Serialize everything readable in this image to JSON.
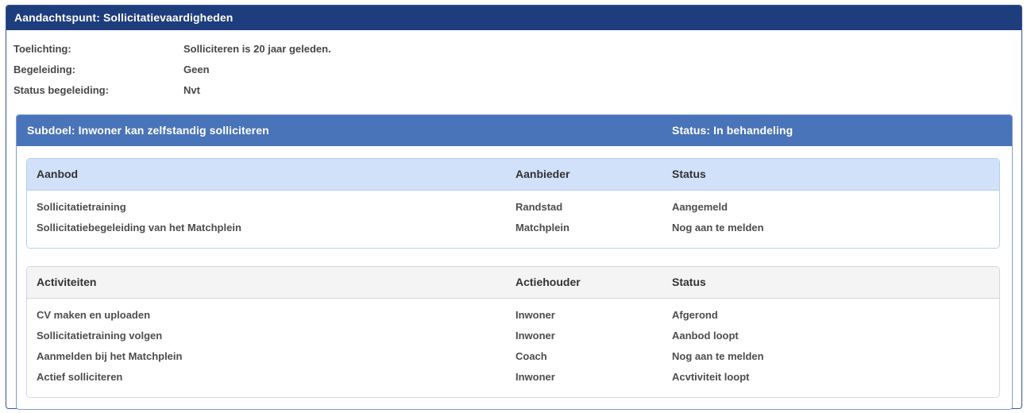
{
  "header": {
    "title": "Aandachtspunt: Sollicitatievaardigheden"
  },
  "details": {
    "fields": [
      {
        "label": "Toelichting:",
        "value": "Solliciteren is 20 jaar geleden."
      },
      {
        "label": "Begeleiding:",
        "value": "Geen"
      },
      {
        "label": "Status begeleiding:",
        "value": "Nvt"
      }
    ]
  },
  "subgoal": {
    "title": "Subdoel: Inwoner kan zelfstandig solliciteren",
    "status": "Status: In behandeling",
    "tables": [
      {
        "name": "aanbod",
        "columns": [
          "Aanbod",
          "Aanbieder",
          "Status"
        ],
        "rows": [
          [
            "Sollicitatietraining",
            "Randstad",
            "Aangemeld"
          ],
          [
            "Sollicitatiebegeleiding van het Matchplein",
            "Matchplein",
            "Nog aan te melden"
          ]
        ]
      },
      {
        "name": "activiteiten",
        "columns": [
          "Activiteiten",
          "Actiehouder",
          "Status"
        ],
        "rows": [
          [
            "CV maken en uploaden",
            "Inwoner",
            "Afgerond"
          ],
          [
            "Sollicitatietraining volgen",
            "Inwoner",
            "Aanbod loopt"
          ],
          [
            "Aanmelden bij het Matchplein",
            "Coach",
            "Nog aan te melden"
          ],
          [
            "Actief solliciteren",
            "Inwoner",
            "Acvtiviteit loopt"
          ]
        ]
      }
    ]
  },
  "colors": {
    "header_bar": "#1e3d7d",
    "panel_border": "#35549a",
    "subgoal_bar": "#4a74b9",
    "subgoal_border": "#7d9ed6",
    "aanbod_header_bg": "#d2e1fa",
    "aanbod_border": "#b9cdf0",
    "activiteiten_header_bg": "#f4f4f4",
    "activiteiten_border": "#d6d6d6",
    "text_dark": "#474747",
    "text_white": "#ffffff"
  }
}
